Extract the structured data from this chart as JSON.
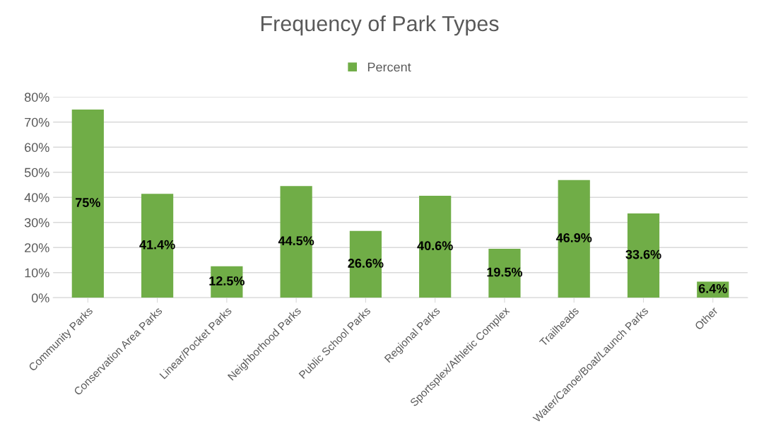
{
  "chart_data": {
    "type": "bar",
    "title": "Frequency of Park Types",
    "categories": [
      "Community Parks",
      "Conservation Area Parks",
      "Linear/Pocket Parks",
      "Neighborhood Parks",
      "Public School Parks",
      "Regional Parks",
      "Sportsplex/Athletic Complex",
      "Trailheads",
      "Water/Canoe/Boat/Launch Parks",
      "Other"
    ],
    "series": [
      {
        "name": "Percent",
        "color": "#70ad47",
        "values": [
          75,
          41.4,
          12.5,
          44.5,
          26.6,
          40.6,
          19.5,
          46.9,
          33.6,
          6.4
        ],
        "value_labels": [
          "75%",
          "41.4%",
          "12.5%",
          "44.5%",
          "26.6%",
          "40.6%",
          "19.5%",
          "46.9%",
          "33.6%",
          "6.4%"
        ]
      }
    ],
    "ylim": [
      0,
      80
    ],
    "yticks": [
      {
        "value": 0,
        "label": "0%"
      },
      {
        "value": 10,
        "label": "10%"
      },
      {
        "value": 20,
        "label": "20%"
      },
      {
        "value": 30,
        "label": "30%"
      },
      {
        "value": 40,
        "label": "40%"
      },
      {
        "value": 50,
        "label": "50%"
      },
      {
        "value": 60,
        "label": "60%"
      },
      {
        "value": 70,
        "label": "70%"
      },
      {
        "value": 80,
        "label": "80%"
      }
    ],
    "grid": "y",
    "legend": "top"
  }
}
